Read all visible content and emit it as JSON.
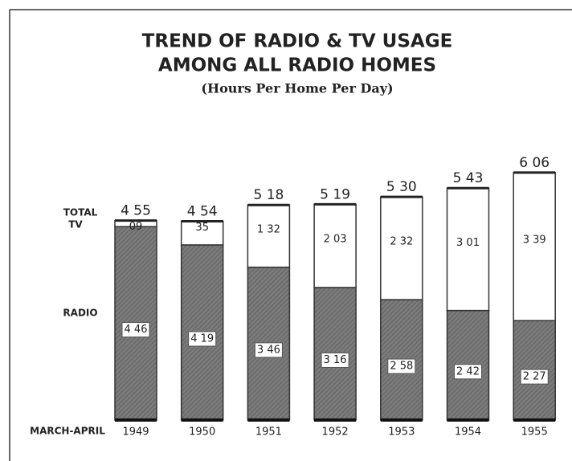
{
  "chart_data": {
    "type": "stacked_bar",
    "title": [
      "TREND OF RADIO & TV USAGE",
      "AMONG ALL RADIO HOMES"
    ],
    "subtitle": "(Hours Per Home Per Day)",
    "x_label": "MARCH-APRIL",
    "total_label": "TOTAL",
    "categories": [
      "1949",
      "1950",
      "1951",
      "1952",
      "1953",
      "1954",
      "1955"
    ],
    "series": [
      {
        "name": "RADIO",
        "color": "#7a7a7a",
        "values": [
          286,
          259,
          226,
          196,
          178,
          162,
          147
        ],
        "value_labels": [
          "4 46",
          "4 19",
          "3 46",
          "3 16",
          "2 58",
          "2 42",
          "2 27"
        ]
      },
      {
        "name": "TV",
        "color": "#ffffff",
        "values": [
          9,
          35,
          92,
          123,
          152,
          181,
          219
        ],
        "value_labels": [
          "09",
          "35",
          "1 32",
          "2 03",
          "2 32",
          "3 01",
          "3 39"
        ]
      }
    ],
    "totals": {
      "values": [
        295,
        294,
        318,
        319,
        330,
        343,
        366
      ],
      "value_labels": [
        "4 55",
        "4 54",
        "5 18",
        "5 19",
        "5 30",
        "5 43",
        "6 06"
      ]
    }
  }
}
